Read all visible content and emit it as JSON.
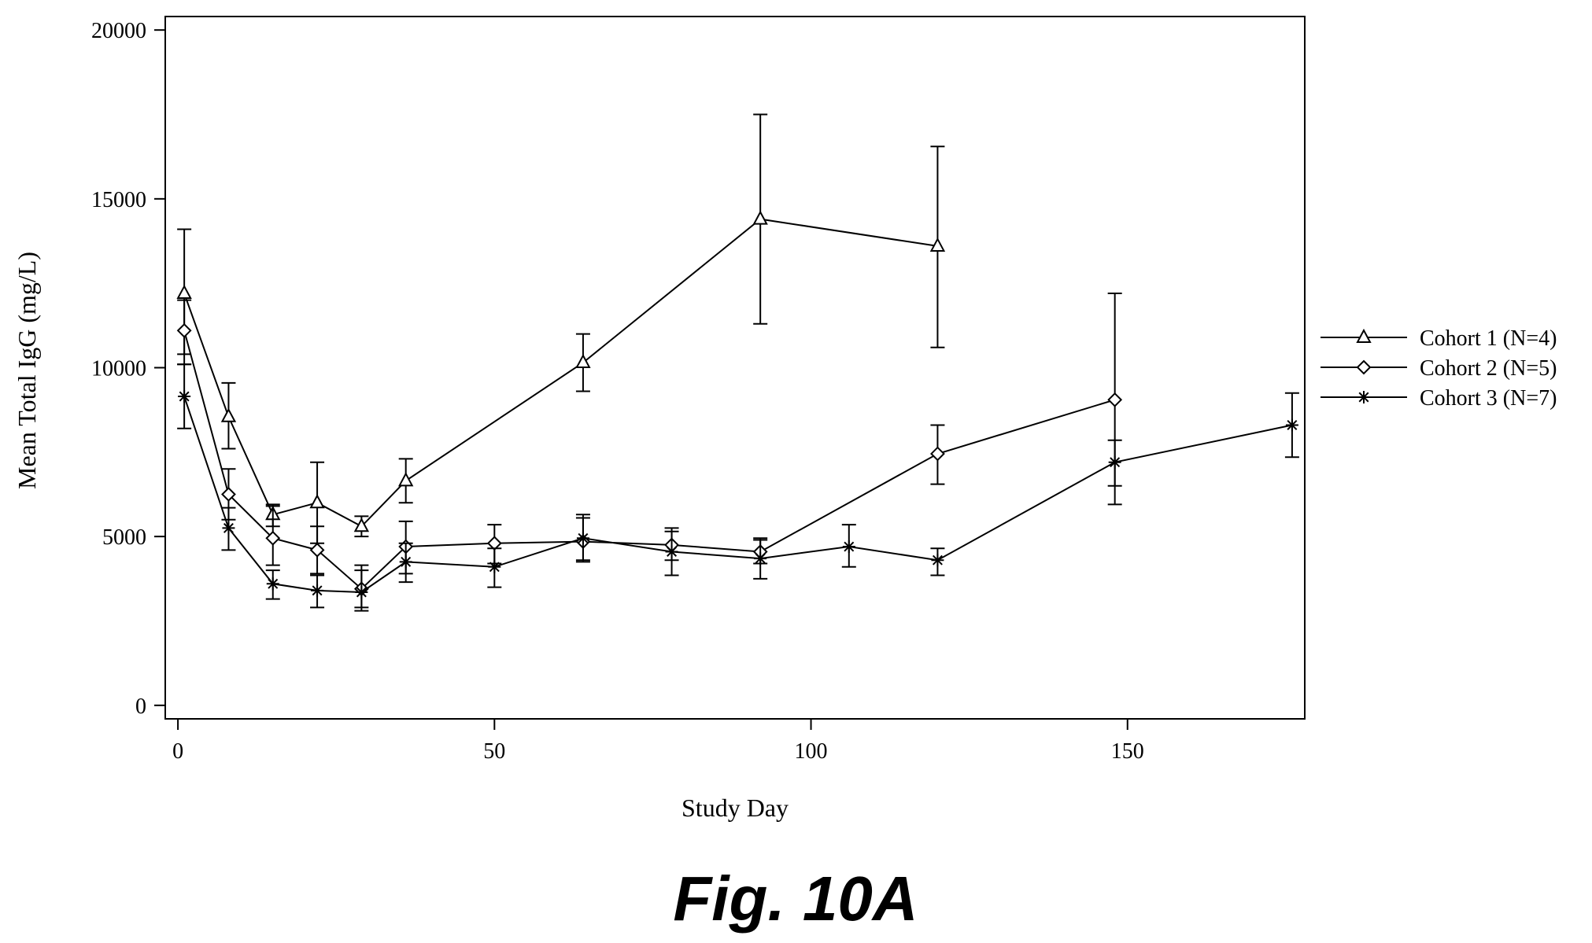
{
  "figure": {
    "caption": "Fig. 10A"
  },
  "colors": {
    "line": "#000000",
    "background": "#ffffff"
  },
  "chart_data": {
    "type": "line",
    "title": "",
    "xlabel": "Study Day",
    "ylabel": "Mean Total IgG (mg/L)",
    "xlim": [
      -2,
      178
    ],
    "ylim": [
      -400,
      20400
    ],
    "xticks": [
      0,
      50,
      100,
      150
    ],
    "yticks": [
      0,
      5000,
      10000,
      15000,
      20000
    ],
    "grid": false,
    "legend_position": "right",
    "series": [
      {
        "name": "Cohort 1 (N=4)",
        "marker": "triangle",
        "x": [
          1,
          8,
          15,
          22,
          29,
          36,
          64,
          92,
          120
        ],
        "y": [
          12200,
          8550,
          5650,
          6000,
          5300,
          6650,
          10150,
          14400,
          13600
        ],
        "err_low": [
          10100,
          7600,
          5300,
          4800,
          5000,
          6000,
          9300,
          11300,
          10600
        ],
        "err_high": [
          14100,
          9550,
          5950,
          7200,
          5600,
          7300,
          11000,
          17500,
          16550
        ]
      },
      {
        "name": "Cohort 2 (N=5)",
        "marker": "diamond",
        "x": [
          1,
          8,
          15,
          22,
          29,
          36,
          50,
          64,
          78,
          92,
          120,
          148
        ],
        "y": [
          11100,
          6250,
          4950,
          4600,
          3450,
          4700,
          4800,
          4850,
          4750,
          4550,
          7450,
          9050
        ],
        "err_low": [
          10400,
          5500,
          4150,
          3900,
          2900,
          3900,
          4200,
          4300,
          4300,
          4200,
          6550,
          5950
        ],
        "err_high": [
          12000,
          7000,
          5900,
          5300,
          4000,
          5450,
          5350,
          5550,
          5250,
          4950,
          8300,
          12200
        ]
      },
      {
        "name": "Cohort 3 (N=7)",
        "marker": "star",
        "x": [
          1,
          8,
          15,
          22,
          29,
          36,
          50,
          64,
          78,
          92,
          106,
          120,
          148,
          176
        ],
        "y": [
          9150,
          5250,
          3600,
          3400,
          3350,
          4250,
          4100,
          4950,
          4550,
          4350,
          4700,
          4300,
          7200,
          8300
        ],
        "err_low": [
          8200,
          4600,
          3150,
          2900,
          2800,
          3650,
          3500,
          4250,
          3850,
          3750,
          4100,
          3850,
          6500,
          7350
        ],
        "err_high": [
          10100,
          5850,
          4000,
          3850,
          4150,
          4800,
          4650,
          5650,
          5150,
          4900,
          5350,
          4650,
          7850,
          9250
        ]
      }
    ]
  }
}
